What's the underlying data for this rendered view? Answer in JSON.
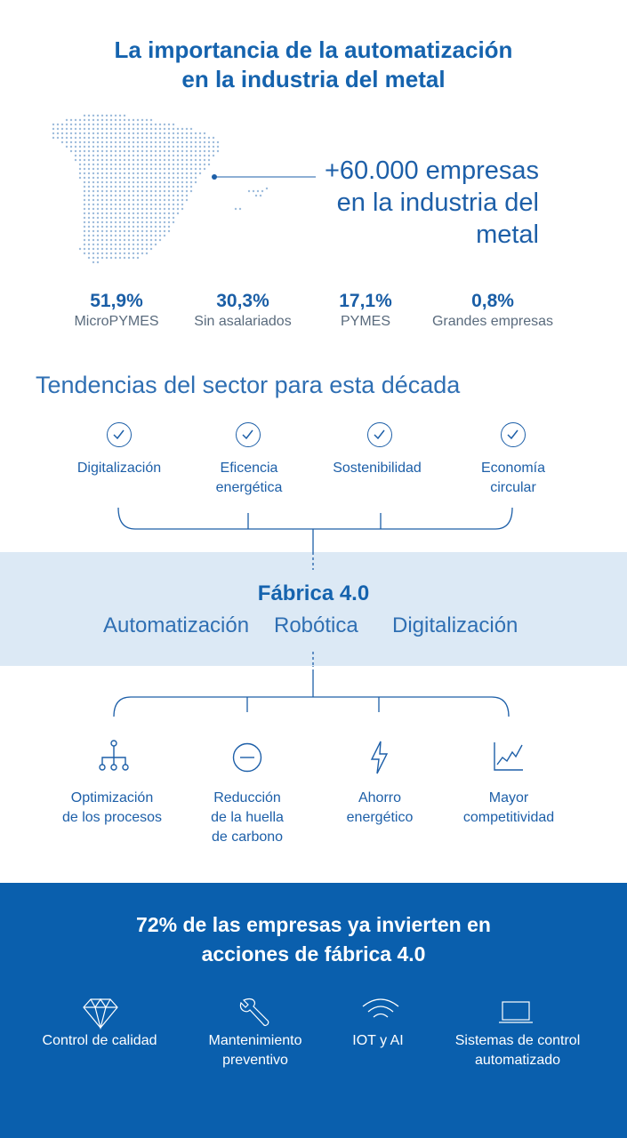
{
  "title": {
    "line1": "La importancia de la automatización",
    "line2": "en la industria del metal"
  },
  "map": {
    "icon": "spain-dot-map",
    "callout_line1": "+60.000 empresas",
    "callout_line2": "en la industria del metal"
  },
  "stats": [
    {
      "value": "51,9%",
      "label": "MicroPYMES"
    },
    {
      "value": "30,3%",
      "label": "Sin asalariados"
    },
    {
      "value": "17,1%",
      "label": "PYMES"
    },
    {
      "value": "0,8%",
      "label": "Grandes empresas"
    }
  ],
  "trends": {
    "title": "Tendencias del sector para esta década",
    "items": [
      {
        "line1": "Digitalización",
        "line2": "",
        "icon": "check-circle-icon"
      },
      {
        "line1": "Eficencia",
        "line2": "energética",
        "icon": "check-circle-icon"
      },
      {
        "line1": "Sostenibilidad",
        "line2": "",
        "icon": "check-circle-icon"
      },
      {
        "line1": "Economía",
        "line2": "circular",
        "icon": "check-circle-icon"
      }
    ]
  },
  "fabrica": {
    "title": "Fábrica 4.0",
    "items": [
      "Automatización",
      "Robótica",
      "Digitalización"
    ]
  },
  "benefits": [
    {
      "line1": "Optimización",
      "line2": "de los procesos",
      "line3": "",
      "icon": "hierarchy-icon"
    },
    {
      "line1": "Reducción",
      "line2": "de la huella",
      "line3": "de carbono",
      "icon": "minus-circle-icon"
    },
    {
      "line1": "Ahorro",
      "line2": "energético",
      "line3": "",
      "icon": "lightning-icon"
    },
    {
      "line1": "Mayor",
      "line2": "competitividad",
      "line3": "",
      "icon": "line-chart-icon"
    }
  ],
  "investment": {
    "title_line1": "72% de las empresas ya invierten en",
    "title_line2": "acciones de fábrica 4.0",
    "items": [
      {
        "line1": "Control de calidad",
        "line2": "",
        "icon": "diamond-icon"
      },
      {
        "line1": "Mantenimiento",
        "line2": "preventivo",
        "icon": "wrench-icon"
      },
      {
        "line1": "IOT y AI",
        "line2": "",
        "icon": "wifi-icon"
      },
      {
        "line1": "Sistemas de control",
        "line2": "automatizado",
        "icon": "laptop-icon"
      }
    ]
  },
  "colors": {
    "primary": "#1563ae",
    "band": "#dce9f5",
    "bottom_bg": "#0a5fad",
    "gray_text": "#5a6b7d"
  }
}
